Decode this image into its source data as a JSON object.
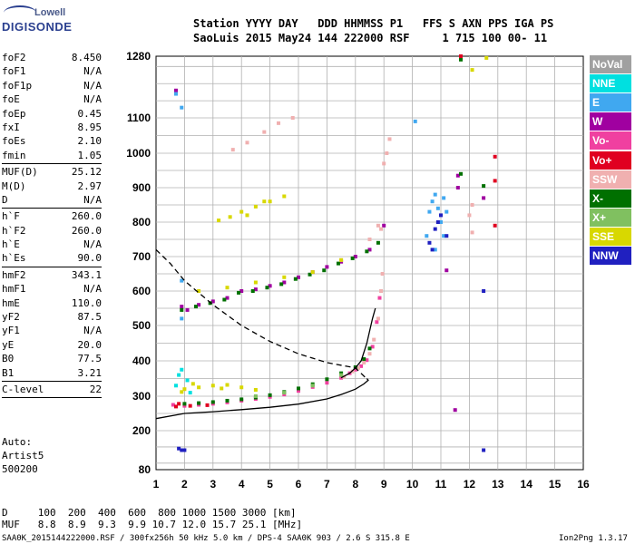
{
  "logo": {
    "top": "Lowell",
    "bottom": "DIGISONDE"
  },
  "header": {
    "line1": "Station YYYY DAY   DDD HHMMSS P1   FFS S AXN PPS IGA PS",
    "line2": "SaoLuis 2015 May24 144 222000 RSF     1 715 100 00- 11"
  },
  "params": [
    {
      "name": "foF2",
      "value": "8.450"
    },
    {
      "name": "foF1",
      "value": "N/A"
    },
    {
      "name": "foF1p",
      "value": "N/A"
    },
    {
      "name": "foE",
      "value": "N/A"
    },
    {
      "name": "foEp",
      "value": "0.45"
    },
    {
      "name": "fxI",
      "value": "8.95"
    },
    {
      "name": "foEs",
      "value": "2.10"
    },
    {
      "name": "fmin",
      "value": "1.05"
    },
    {
      "sep": true
    },
    {
      "name": "MUF(D)",
      "value": "25.12"
    },
    {
      "name": "M(D)",
      "value": "2.97"
    },
    {
      "name": "D",
      "value": "N/A"
    },
    {
      "sep": true
    },
    {
      "name": "h`F",
      "value": "260.0"
    },
    {
      "name": "h`F2",
      "value": "260.0"
    },
    {
      "name": "h`E",
      "value": "N/A"
    },
    {
      "name": "h`Es",
      "value": "90.0"
    },
    {
      "sep": true
    },
    {
      "name": "hmF2",
      "value": "343.1"
    },
    {
      "name": "hmF1",
      "value": "N/A"
    },
    {
      "name": "hmE",
      "value": "110.0"
    },
    {
      "name": "yF2",
      "value": "87.5"
    },
    {
      "name": "yF1",
      "value": "N/A"
    },
    {
      "name": "yE",
      "value": "20.0"
    },
    {
      "name": "B0",
      "value": "77.5"
    },
    {
      "name": "B1",
      "value": "3.21"
    },
    {
      "sep": true
    },
    {
      "name": "C-level",
      "value": "22"
    },
    {
      "sep": true
    }
  ],
  "auto": {
    "line1": "Auto:",
    "line2": "Artist5",
    "line3": "500200"
  },
  "bottom": {
    "d_row": "D     100  200  400  600  800 1000 1500 3000 [km]",
    "muf_row": "MUF   8.8  8.9  9.3  9.9 10.7 12.0 15.7 25.1 [MHz]"
  },
  "footer": {
    "left": "SAA0K_2015144222000.RSF / 300fx256h 50 kHz 5.0 km / DPS-4 SAA0K 903 / 2.6 S 315.8 E",
    "right": "Ion2Png 1.3.17"
  },
  "legend": [
    {
      "label": "NoVal",
      "bg": "#a0a0a0",
      "fg": "#ffffff"
    },
    {
      "label": "NNE",
      "bg": "#00e0e0",
      "fg": "#ffffff"
    },
    {
      "label": "E",
      "bg": "#40a8f0",
      "fg": "#ffffff"
    },
    {
      "label": "W",
      "bg": "#a000a0",
      "fg": "#ffffff"
    },
    {
      "label": "Vo-",
      "bg": "#f040a0",
      "fg": "#ffffff"
    },
    {
      "label": "Vo+",
      "bg": "#e00020",
      "fg": "#ffffff"
    },
    {
      "label": "SSW",
      "bg": "#f0b0b0",
      "fg": "#ffffff"
    },
    {
      "label": "X-",
      "bg": "#007000",
      "fg": "#ffffff"
    },
    {
      "label": "X+",
      "bg": "#80c060",
      "fg": "#ffffff"
    },
    {
      "label": "SSE",
      "bg": "#d8d800",
      "fg": "#ffffff"
    },
    {
      "label": "NNW",
      "bg": "#2020c0",
      "fg": "#ffffff"
    }
  ],
  "chart_data": {
    "type": "scatter",
    "title": "",
    "xlabel": "",
    "ylabel": "",
    "xlim": [
      1,
      16
    ],
    "ylim": [
      80,
      1280
    ],
    "x_ticks": [
      "1",
      "2",
      "3",
      "4",
      "5",
      "6",
      "7",
      "8",
      "9",
      "10",
      "11",
      "12",
      "13",
      "14",
      "15",
      "16"
    ],
    "y_ticks": [
      {
        "value": 80,
        "label": "80"
      },
      {
        "value": 200,
        "label": "200"
      },
      {
        "value": 300,
        "label": "300"
      },
      {
        "value": 400,
        "label": "400"
      },
      {
        "value": 500,
        "label": "500"
      },
      {
        "value": 600,
        "label": "600"
      },
      {
        "value": 700,
        "label": "700"
      },
      {
        "value": 800,
        "label": "800"
      },
      {
        "value": 900,
        "label": "900"
      },
      {
        "value": 1000,
        "label": "1000"
      },
      {
        "value": 1100,
        "label": "1100"
      },
      {
        "value": 1280,
        "label": "1280"
      }
    ],
    "grid": true,
    "colors": {
      "nne": "#00e0e0",
      "e": "#40a8f0",
      "w": "#a000a0",
      "vo_minus": "#f040a0",
      "vo_plus": "#e00020",
      "ssw": "#f0b0b0",
      "x_minus": "#007000",
      "x_plus": "#80c060",
      "sse": "#d8d800",
      "nnw": "#2020c0"
    },
    "point_sets": [
      {
        "name": "vo_minus",
        "pts": [
          [
            1.6,
            275
          ],
          [
            2.0,
            272
          ],
          [
            2.5,
            275
          ],
          [
            3.0,
            278
          ],
          [
            3.5,
            282
          ],
          [
            4.0,
            287
          ],
          [
            4.5,
            292
          ],
          [
            5.0,
            298
          ],
          [
            5.5,
            305
          ],
          [
            6.0,
            315
          ],
          [
            6.5,
            326
          ],
          [
            7.0,
            338
          ],
          [
            7.5,
            352
          ],
          [
            7.8,
            365
          ],
          [
            8.0,
            375
          ],
          [
            8.2,
            385
          ],
          [
            8.4,
            402
          ],
          [
            8.6,
            440
          ],
          [
            8.75,
            510
          ],
          [
            8.85,
            580
          ]
        ]
      },
      {
        "name": "ssw",
        "pts": [
          [
            7.6,
            355
          ],
          [
            7.9,
            370
          ],
          [
            8.1,
            380
          ],
          [
            8.3,
            395
          ],
          [
            8.5,
            420
          ],
          [
            8.65,
            460
          ],
          [
            8.8,
            520
          ],
          [
            8.9,
            600
          ],
          [
            8.95,
            650
          ]
        ]
      },
      {
        "name": "x_minus",
        "pts": [
          [
            2.0,
            278
          ],
          [
            2.5,
            280
          ],
          [
            3.0,
            283
          ],
          [
            3.5,
            287
          ],
          [
            4.0,
            291
          ],
          [
            4.5,
            296
          ],
          [
            5.0,
            303
          ],
          [
            5.5,
            312
          ],
          [
            6.0,
            322
          ],
          [
            6.5,
            334
          ],
          [
            7.0,
            348
          ],
          [
            7.5,
            365
          ],
          [
            8.0,
            382
          ],
          [
            8.3,
            405
          ],
          [
            8.5,
            435
          ]
        ]
      },
      {
        "name": "x_plus",
        "pts": [
          [
            4.5,
            300
          ],
          [
            5.5,
            310
          ],
          [
            6.5,
            330
          ],
          [
            7.5,
            360
          ]
        ]
      },
      {
        "name": "sse",
        "pts": [
          [
            2.0,
            320
          ],
          [
            2.5,
            325
          ],
          [
            3.0,
            330
          ],
          [
            3.5,
            332
          ],
          [
            4.0,
            325
          ],
          [
            4.5,
            318
          ],
          [
            2.3,
            335
          ],
          [
            3.3,
            322
          ],
          [
            1.9,
            312
          ]
        ]
      },
      {
        "name": "nne",
        "pts": [
          [
            1.7,
            330
          ],
          [
            2.1,
            345
          ],
          [
            1.8,
            360
          ],
          [
            1.9,
            375
          ],
          [
            2.2,
            310
          ]
        ]
      },
      {
        "name": "vo_plus",
        "pts": [
          [
            1.7,
            270
          ],
          [
            2.2,
            272
          ],
          [
            2.8,
            274
          ],
          [
            1.8,
            278
          ]
        ]
      },
      {
        "name": "e",
        "pts": [
          [
            10.6,
            830
          ],
          [
            10.7,
            860
          ],
          [
            10.8,
            880
          ],
          [
            11.0,
            800
          ],
          [
            11.1,
            760
          ],
          [
            10.9,
            840
          ],
          [
            10.5,
            760
          ],
          [
            11.2,
            830
          ],
          [
            10.8,
            720
          ],
          [
            11.1,
            870
          ]
        ]
      },
      {
        "name": "nnw",
        "pts": [
          [
            10.6,
            740
          ],
          [
            10.8,
            780
          ],
          [
            10.9,
            800
          ],
          [
            11.0,
            820
          ],
          [
            11.2,
            760
          ],
          [
            10.7,
            720
          ],
          [
            1.8,
            145
          ],
          [
            1.9,
            140
          ],
          [
            2.0,
            140
          ],
          [
            12.5,
            600
          ],
          [
            12.5,
            140
          ]
        ]
      },
      {
        "name": "w",
        "pts": [
          [
            1.9,
            555
          ],
          [
            2.1,
            545
          ],
          [
            2.5,
            560
          ],
          [
            3.0,
            570
          ],
          [
            3.5,
            580
          ],
          [
            4.0,
            600
          ],
          [
            4.5,
            605
          ],
          [
            5.0,
            615
          ],
          [
            5.5,
            625
          ],
          [
            6.0,
            640
          ],
          [
            6.5,
            655
          ],
          [
            7.0,
            670
          ],
          [
            7.5,
            685
          ],
          [
            8.0,
            700
          ],
          [
            8.5,
            720
          ],
          [
            9.0,
            790
          ],
          [
            11.2,
            660
          ],
          [
            11.6,
            935
          ],
          [
            11.6,
            900
          ],
          [
            12.5,
            870
          ],
          [
            11.5,
            260
          ],
          [
            1.7,
            1180
          ]
        ]
      },
      {
        "name": "green_f",
        "pts": [
          [
            1.9,
            545
          ],
          [
            2.4,
            555
          ],
          [
            2.9,
            565
          ],
          [
            3.4,
            575
          ],
          [
            3.9,
            595
          ],
          [
            4.4,
            600
          ],
          [
            4.9,
            610
          ],
          [
            5.4,
            620
          ],
          [
            5.9,
            635
          ],
          [
            6.4,
            648
          ],
          [
            6.9,
            660
          ],
          [
            7.4,
            680
          ],
          [
            7.9,
            695
          ],
          [
            8.4,
            715
          ],
          [
            8.8,
            740
          ],
          [
            11.7,
            940
          ],
          [
            12.5,
            905
          ],
          [
            11.7,
            1270
          ]
        ]
      },
      {
        "name": "ssw_2",
        "pts": [
          [
            4.2,
            1030
          ],
          [
            4.8,
            1060
          ],
          [
            5.3,
            1085
          ],
          [
            5.8,
            1100
          ],
          [
            3.7,
            1010
          ],
          [
            8.5,
            750
          ],
          [
            8.8,
            790
          ],
          [
            9.1,
            1000
          ],
          [
            9.2,
            1040
          ],
          [
            9.0,
            970
          ],
          [
            8.9,
            780
          ],
          [
            7.5,
            690
          ],
          [
            12.1,
            770
          ],
          [
            12.0,
            820
          ],
          [
            12.1,
            850
          ]
        ]
      },
      {
        "name": "sse_2",
        "pts": [
          [
            3.2,
            805
          ],
          [
            3.6,
            815
          ],
          [
            4.0,
            830
          ],
          [
            4.5,
            845
          ],
          [
            5.0,
            860
          ],
          [
            5.5,
            875
          ],
          [
            4.2,
            820
          ],
          [
            4.8,
            860
          ],
          [
            2.5,
            600
          ],
          [
            3.5,
            610
          ],
          [
            4.5,
            625
          ],
          [
            5.5,
            640
          ],
          [
            6.5,
            655
          ],
          [
            7.5,
            690
          ],
          [
            12.1,
            1240
          ],
          [
            12.6,
            1275
          ]
        ]
      },
      {
        "name": "e_2",
        "pts": [
          [
            1.9,
            1130
          ],
          [
            1.7,
            1170
          ],
          [
            1.9,
            630
          ],
          [
            1.9,
            520
          ],
          [
            10.1,
            1090
          ]
        ]
      },
      {
        "name": "vo_plus_2",
        "pts": [
          [
            12.9,
            790
          ],
          [
            12.9,
            920
          ],
          [
            12.9,
            990
          ],
          [
            11.7,
            1280
          ]
        ]
      }
    ],
    "solid_curve_1": [
      [
        1,
        235
      ],
      [
        2,
        250
      ],
      [
        3,
        255
      ],
      [
        4,
        261
      ],
      [
        5,
        268
      ],
      [
        6,
        277
      ],
      [
        7,
        292
      ],
      [
        7.5,
        305
      ],
      [
        8,
        320
      ],
      [
        8.3,
        335
      ],
      [
        8.45,
        345
      ],
      [
        8.4,
        350
      ]
    ],
    "solid_curve_2": [
      [
        7.5,
        352
      ],
      [
        7.8,
        365
      ],
      [
        8.0,
        380
      ],
      [
        8.2,
        400
      ],
      [
        8.4,
        450
      ],
      [
        8.6,
        520
      ],
      [
        8.7,
        550
      ]
    ],
    "dashed_curve": [
      [
        1,
        720
      ],
      [
        1.5,
        680
      ],
      [
        2,
        630
      ],
      [
        3,
        560
      ],
      [
        4,
        500
      ],
      [
        5,
        455
      ],
      [
        6,
        420
      ],
      [
        7,
        395
      ],
      [
        8,
        380
      ],
      [
        8.45,
        345
      ]
    ]
  }
}
